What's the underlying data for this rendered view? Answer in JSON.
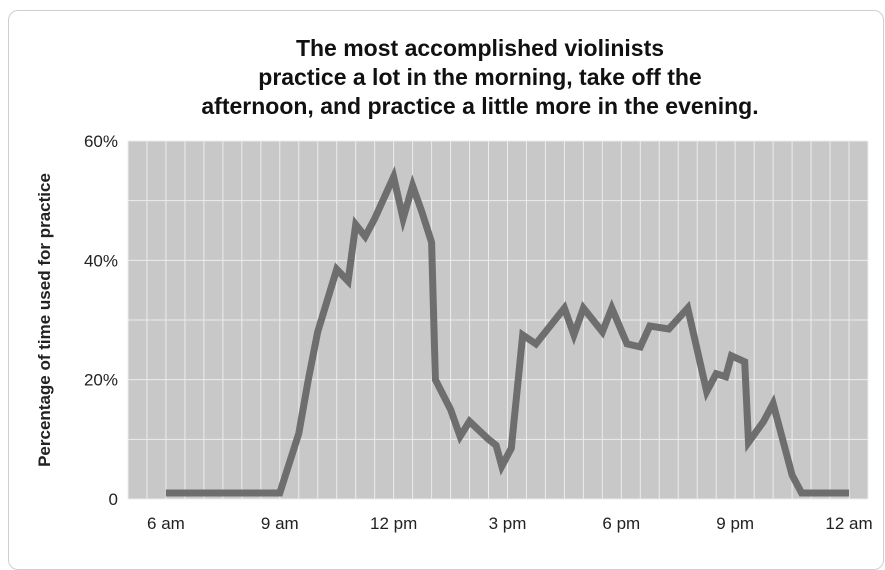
{
  "chart_data": {
    "type": "line",
    "title_lines": [
      "The most accomplished violinists",
      "practice a lot in the morning, take off the",
      "afternoon, and practice a little more in the evening."
    ],
    "xlabel": "",
    "ylabel": "Percentage of time used for practice",
    "x_unit": "hour of day (24h)",
    "xlim": [
      5,
      24.5
    ],
    "ylim": [
      0,
      60
    ],
    "x_ticks": [
      {
        "x": 6,
        "label": "6 am"
      },
      {
        "x": 9,
        "label": "9 am"
      },
      {
        "x": 12,
        "label": "12 pm"
      },
      {
        "x": 15,
        "label": "3 pm"
      },
      {
        "x": 18,
        "label": "6 pm"
      },
      {
        "x": 21,
        "label": "9 pm"
      },
      {
        "x": 24,
        "label": "12 am"
      }
    ],
    "y_ticks": [
      {
        "y": 0,
        "label": "0"
      },
      {
        "y": 20,
        "label": "20%"
      },
      {
        "y": 40,
        "label": "40%"
      },
      {
        "y": 60,
        "label": "60%"
      }
    ],
    "grid": true,
    "series": [
      {
        "name": "",
        "color": "#6e6e6e",
        "points": [
          [
            6,
            1
          ],
          [
            9,
            1
          ],
          [
            9.25,
            6
          ],
          [
            9.5,
            11
          ],
          [
            9.75,
            20
          ],
          [
            10,
            28
          ],
          [
            10.5,
            38.5
          ],
          [
            10.8,
            36.5
          ],
          [
            11,
            46
          ],
          [
            11.25,
            44
          ],
          [
            11.5,
            47
          ],
          [
            12,
            54
          ],
          [
            12.25,
            47
          ],
          [
            12.5,
            52.5
          ],
          [
            12.75,
            48
          ],
          [
            13,
            43
          ],
          [
            13.1,
            20
          ],
          [
            13.5,
            15
          ],
          [
            13.75,
            10.5
          ],
          [
            14,
            13
          ],
          [
            14.5,
            10
          ],
          [
            14.7,
            9
          ],
          [
            14.85,
            5.5
          ],
          [
            15.1,
            8.5
          ],
          [
            15.4,
            27.5
          ],
          [
            15.75,
            26
          ],
          [
            16.25,
            30
          ],
          [
            16.5,
            32
          ],
          [
            16.75,
            27.5
          ],
          [
            17,
            32
          ],
          [
            17.5,
            28
          ],
          [
            17.75,
            32
          ],
          [
            18.15,
            26
          ],
          [
            18.5,
            25.5
          ],
          [
            18.75,
            29
          ],
          [
            19.25,
            28.5
          ],
          [
            19.75,
            32
          ],
          [
            20.25,
            18
          ],
          [
            20.5,
            21
          ],
          [
            20.75,
            20.5
          ],
          [
            20.9,
            24
          ],
          [
            21.25,
            23
          ],
          [
            21.35,
            9.5
          ],
          [
            21.75,
            13
          ],
          [
            22,
            16
          ],
          [
            22.5,
            4
          ],
          [
            22.75,
            1
          ],
          [
            24,
            1
          ]
        ]
      }
    ]
  },
  "colors": {
    "plot_background": "#c8c8c8",
    "grid": "#ececec",
    "line": "#6e6e6e",
    "text": "#222222"
  }
}
